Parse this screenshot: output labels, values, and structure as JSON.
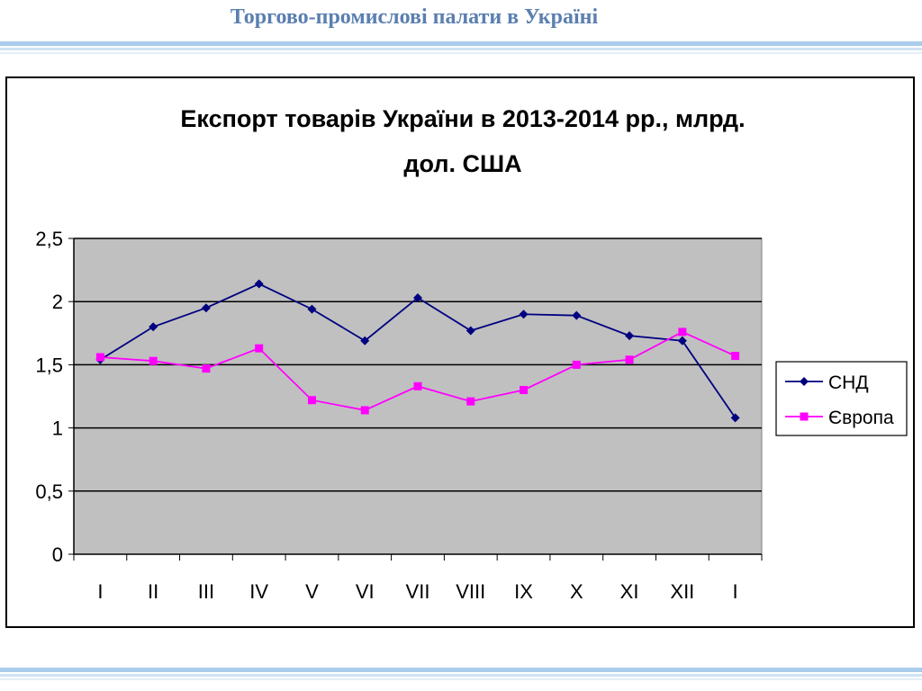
{
  "slide": {
    "title": "Торгово-промислові палати в Україні"
  },
  "colors": {
    "header_text": "#5a7fb0",
    "band": "#a9cdeb",
    "plot_bg": "#c0c0c0",
    "series_1": "#000080",
    "series_2": "#ff00ff"
  },
  "chart_data": {
    "type": "line",
    "title_lines": [
      "Експорт товарів України в 2013-2014 рр., млрд.",
      "дол. США"
    ],
    "categories": [
      "I",
      "II",
      "III",
      "IV",
      "V",
      "VI",
      "VII",
      "VIII",
      "IX",
      "X",
      "XI",
      "XII",
      "I"
    ],
    "y_ticks": [
      "0",
      "0,5",
      "1",
      "1,5",
      "2",
      "2,5"
    ],
    "ylim": [
      0,
      2.5
    ],
    "grid": true,
    "legend_position": "right",
    "series": [
      {
        "name": "СНД",
        "color": "#000080",
        "marker": "diamond",
        "values": [
          1.54,
          1.8,
          1.95,
          2.14,
          1.94,
          1.69,
          2.03,
          1.77,
          1.9,
          1.89,
          1.73,
          1.69,
          1.08
        ]
      },
      {
        "name": "Європа",
        "color": "#ff00ff",
        "marker": "square",
        "values": [
          1.56,
          1.53,
          1.47,
          1.63,
          1.22,
          1.14,
          1.33,
          1.21,
          1.3,
          1.5,
          1.54,
          1.76,
          1.57
        ]
      }
    ]
  }
}
